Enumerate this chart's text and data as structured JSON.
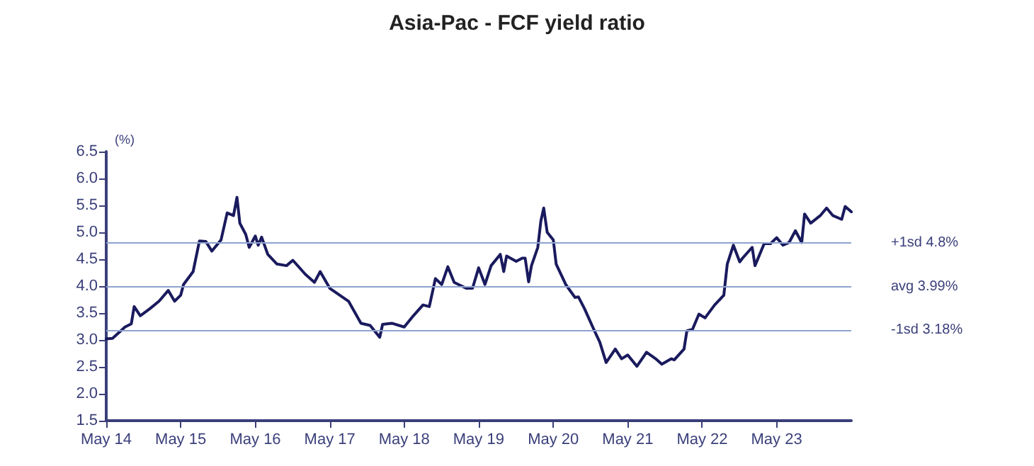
{
  "chart_data": {
    "type": "line",
    "title": "Asia-Pac - FCF yield ratio",
    "ylabel": "(%)",
    "x": [
      "2014-05-01",
      "2014-06-01",
      "2014-08-01",
      "2014-09-01",
      "2014-09-15",
      "2014-10-15",
      "2014-12-01",
      "2015-01-15",
      "2015-03-01",
      "2015-04-01",
      "2015-05-01",
      "2015-05-15",
      "2015-07-01",
      "2015-08-01",
      "2015-09-01",
      "2015-10-01",
      "2015-11-15",
      "2015-12-15",
      "2016-01-15",
      "2016-02-01",
      "2016-02-15",
      "2016-03-15",
      "2016-04-01",
      "2016-05-01",
      "2016-05-15",
      "2016-06-01",
      "2016-07-01",
      "2016-08-15",
      "2016-10-01",
      "2016-11-01",
      "2017-01-01",
      "2017-02-15",
      "2017-03-15",
      "2017-05-01",
      "2017-08-01",
      "2017-10-01",
      "2017-11-15",
      "2018-01-01",
      "2018-01-15",
      "2018-03-01",
      "2018-05-01",
      "2018-06-15",
      "2018-08-01",
      "2018-09-01",
      "2018-10-01",
      "2018-11-01",
      "2018-12-01",
      "2019-01-01",
      "2019-03-01",
      "2019-04-01",
      "2019-05-01",
      "2019-06-01",
      "2019-07-01",
      "2019-08-15",
      "2019-09-01",
      "2019-09-15",
      "2019-11-01",
      "2019-12-01",
      "2019-12-15",
      "2020-01-01",
      "2020-01-15",
      "2020-02-15",
      "2020-03-01",
      "2020-03-15",
      "2020-04-01",
      "2020-05-01",
      "2020-05-15",
      "2020-07-01",
      "2020-08-15",
      "2020-09-01",
      "2020-10-01",
      "2020-11-15",
      "2020-12-15",
      "2021-01-15",
      "2021-03-01",
      "2021-04-01",
      "2021-05-01",
      "2021-06-15",
      "2021-08-01",
      "2021-09-15",
      "2021-10-15",
      "2021-12-01",
      "2021-12-15",
      "2022-02-01",
      "2022-02-15",
      "2022-03-15",
      "2022-04-15",
      "2022-05-15",
      "2022-07-01",
      "2022-08-15",
      "2022-09-01",
      "2022-10-01",
      "2022-11-01",
      "2022-11-15",
      "2023-01-01",
      "2023-01-15",
      "2023-03-01",
      "2023-04-01",
      "2023-05-01",
      "2023-06-01",
      "2023-07-01",
      "2023-08-01",
      "2023-09-01",
      "2023-09-15",
      "2023-10-15",
      "2023-12-01",
      "2024-01-01",
      "2024-02-01",
      "2024-03-15",
      "2024-04-01",
      "2024-05-01"
    ],
    "series": [
      {
        "color": "#1a1a5e",
        "values": [
          3.02,
          3.03,
          3.24,
          3.3,
          3.62,
          3.45,
          3.58,
          3.72,
          3.92,
          3.72,
          3.83,
          4.03,
          4.27,
          4.84,
          4.83,
          4.65,
          4.86,
          5.36,
          5.31,
          5.65,
          5.17,
          4.96,
          4.72,
          4.93,
          4.76,
          4.91,
          4.59,
          4.41,
          4.38,
          4.48,
          4.22,
          4.07,
          4.27,
          3.96,
          3.72,
          3.31,
          3.27,
          3.05,
          3.29,
          3.31,
          3.24,
          3.45,
          3.65,
          3.62,
          4.14,
          4.03,
          4.36,
          4.07,
          3.96,
          3.96,
          4.34,
          4.03,
          4.38,
          4.59,
          4.27,
          4.56,
          4.46,
          4.52,
          4.52,
          4.08,
          4.38,
          4.72,
          5.21,
          5.45,
          5.0,
          4.86,
          4.41,
          4.03,
          3.79,
          3.8,
          3.58,
          3.2,
          2.96,
          2.58,
          2.83,
          2.65,
          2.72,
          2.51,
          2.77,
          2.65,
          2.55,
          2.65,
          2.63,
          2.83,
          3.17,
          3.2,
          3.48,
          3.41,
          3.65,
          3.83,
          4.41,
          4.76,
          4.45,
          4.52,
          4.72,
          4.38,
          4.79,
          4.79,
          4.9,
          4.76,
          4.81,
          5.03,
          4.81,
          5.34,
          5.17,
          5.31,
          5.45,
          5.31,
          5.24,
          5.48,
          5.38
        ]
      }
    ],
    "xlim": [
      "2014-05-01",
      "2024-05-01"
    ],
    "xticks": [
      {
        "value": "2014-05-01",
        "label": "May 14"
      },
      {
        "value": "2015-05-01",
        "label": "May 15"
      },
      {
        "value": "2016-05-01",
        "label": "May 16"
      },
      {
        "value": "2017-05-01",
        "label": "May 17"
      },
      {
        "value": "2018-05-01",
        "label": "May 18"
      },
      {
        "value": "2019-05-01",
        "label": "May 19"
      },
      {
        "value": "2020-05-01",
        "label": "May 20"
      },
      {
        "value": "2021-05-01",
        "label": "May 21"
      },
      {
        "value": "2022-05-01",
        "label": "May 22"
      },
      {
        "value": "2023-05-01",
        "label": "May 23"
      }
    ],
    "ylim": [
      1.5,
      6.5
    ],
    "yticks": [
      1.5,
      {
        "value": 2,
        "label": "2.0"
      },
      2.5,
      {
        "value": 3,
        "label": "3.0"
      },
      3.5,
      {
        "value": 4,
        "label": "4.0"
      },
      4.5,
      {
        "value": 5,
        "label": "5.0"
      },
      5.5,
      {
        "value": 6,
        "label": "6.0"
      },
      6.5
    ],
    "ref_lines": [
      {
        "axis": "y",
        "value": 4.8,
        "label": "+1sd 4.8%",
        "color": "#8fa3d0"
      },
      {
        "axis": "y",
        "value": 3.99,
        "label": "avg 3.99%",
        "color": "#8fa3d0"
      },
      {
        "axis": "y",
        "value": 3.18,
        "label": "-1sd 3.18%",
        "color": "#8fa3d0"
      }
    ],
    "grid": false,
    "marker": "none",
    "line_style": "solid"
  }
}
